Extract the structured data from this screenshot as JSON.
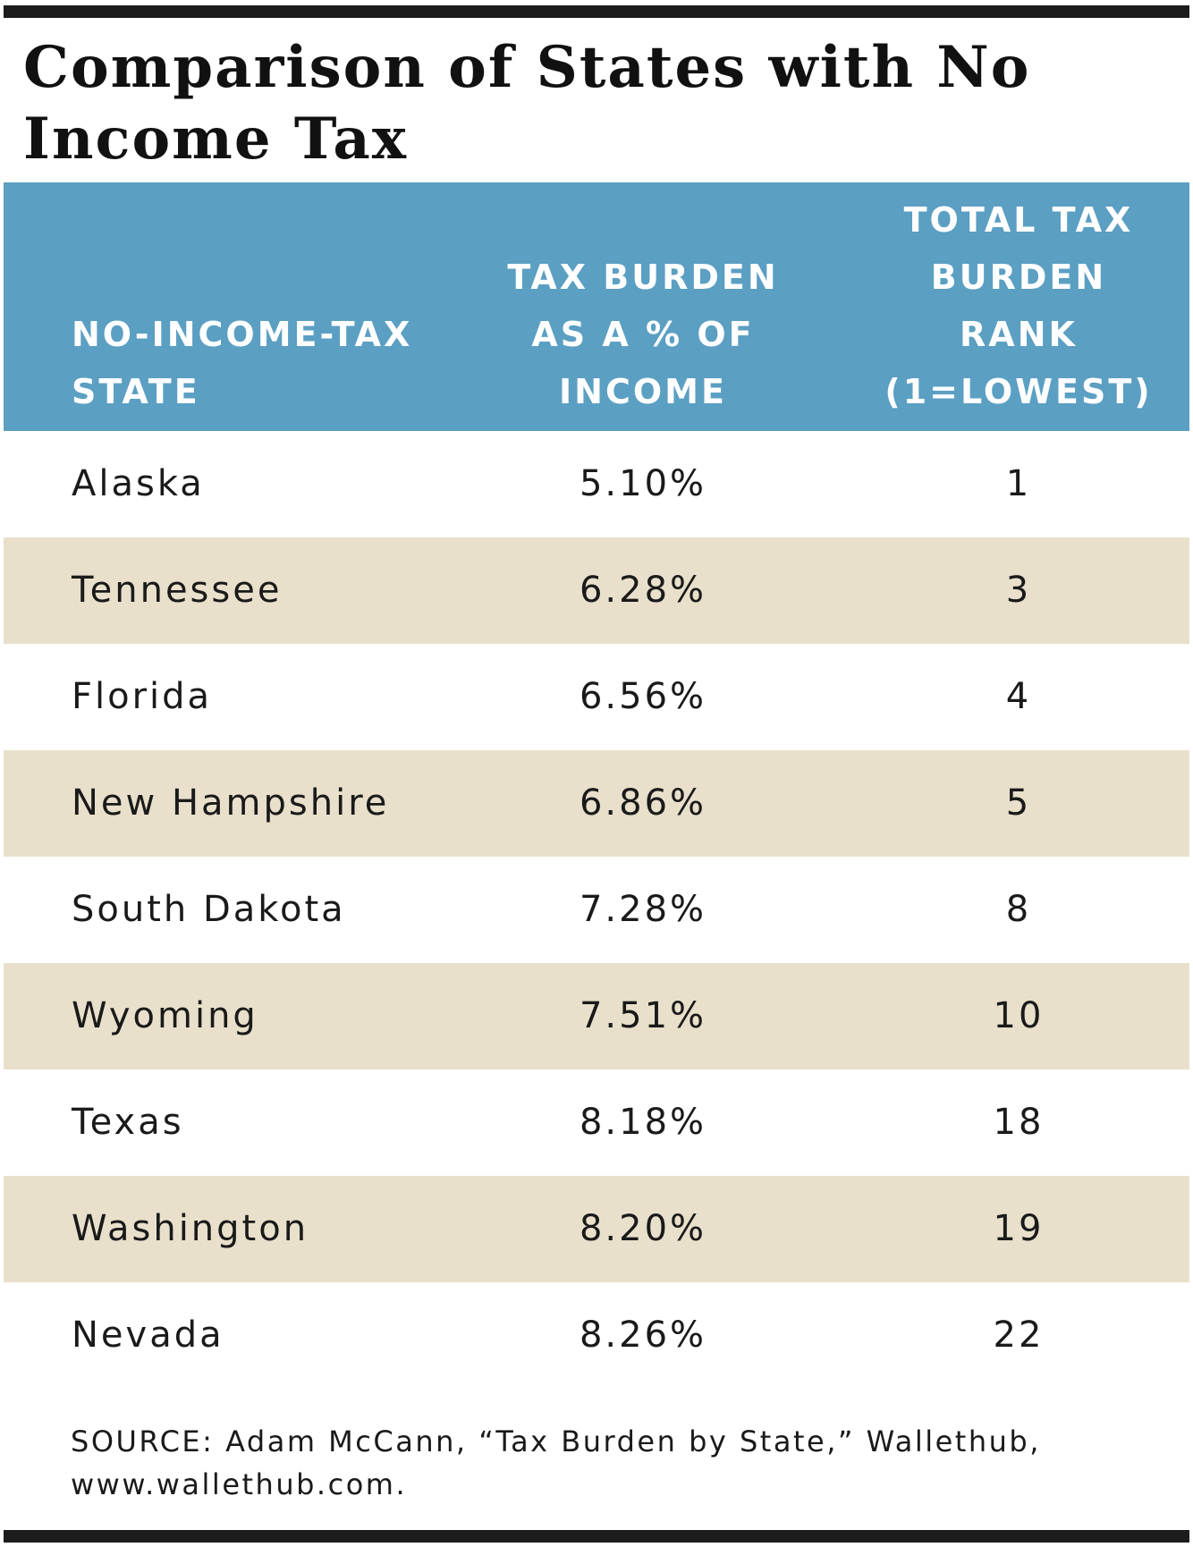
{
  "chart_data": {
    "type": "table",
    "title": "Comparison of States with No Income Tax",
    "columns": [
      "NO-INCOME-TAX\nSTATE",
      "TAX BURDEN\nAS A % OF\nINCOME",
      "TOTAL TAX\nBURDEN\nRANK\n(1=LOWEST)"
    ],
    "rows": [
      {
        "state": "Alaska",
        "burden": "5.10%",
        "rank": "1"
      },
      {
        "state": "Tennessee",
        "burden": "6.28%",
        "rank": "3"
      },
      {
        "state": "Florida",
        "burden": "6.56%",
        "rank": "4"
      },
      {
        "state": "New Hampshire",
        "burden": "6.86%",
        "rank": "5"
      },
      {
        "state": "South Dakota",
        "burden": "7.28%",
        "rank": "8"
      },
      {
        "state": "Wyoming",
        "burden": "7.51%",
        "rank": "10"
      },
      {
        "state": "Texas",
        "burden": "8.18%",
        "rank": "18"
      },
      {
        "state": "Washington",
        "burden": "8.20%",
        "rank": "19"
      },
      {
        "state": "Nevada",
        "burden": "8.26%",
        "rank": "22"
      }
    ],
    "source": "SOURCE: Adam McCann, “Tax Burden by State,” Wallethub, www.wallethub.com."
  },
  "colors": {
    "header_bg": "#5b9fc3",
    "stripe_bg": "#e8e0cb",
    "rule": "#1c1c1c"
  }
}
